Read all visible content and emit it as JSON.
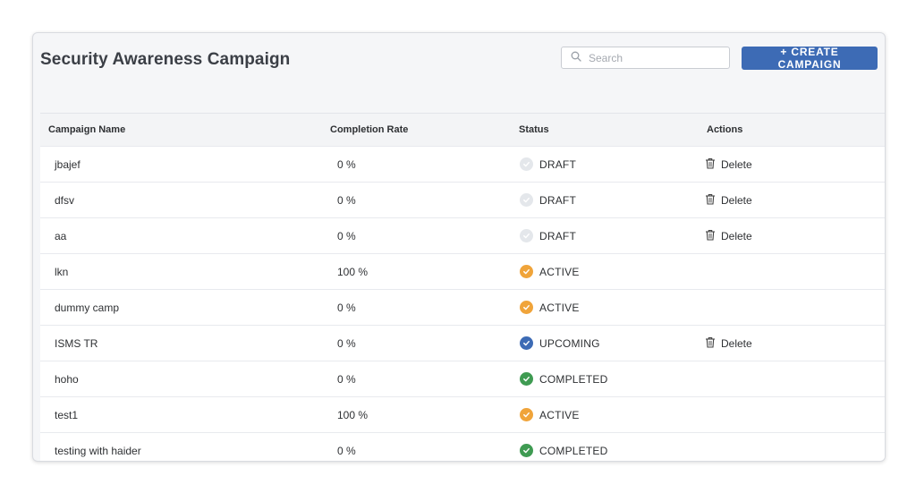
{
  "page": {
    "title": "Security Awareness Campaign",
    "search_placeholder": "Search",
    "search_value": "",
    "create_button": "+ CREATE CAMPAIGN"
  },
  "colors": {
    "accent": "#3d6bb5",
    "draft": "#e4e7eb",
    "active": "#f0a43a",
    "upcoming": "#3d6bb5",
    "completed": "#3f9b52"
  },
  "table": {
    "columns": [
      "Campaign Name",
      "Completion Rate",
      "Status",
      "Actions"
    ],
    "rows": [
      {
        "name": "jbajef",
        "rate": "0 %",
        "status": "DRAFT",
        "status_icon": "check-circle-icon",
        "action": "Delete"
      },
      {
        "name": "dfsv",
        "rate": "0 %",
        "status": "DRAFT",
        "status_icon": "check-circle-icon",
        "action": "Delete"
      },
      {
        "name": "aa",
        "rate": "0 %",
        "status": "DRAFT",
        "status_icon": "check-circle-icon",
        "action": "Delete"
      },
      {
        "name": "lkn",
        "rate": "100 %",
        "status": "ACTIVE",
        "status_icon": "check-circle-icon",
        "action": ""
      },
      {
        "name": "dummy camp",
        "rate": "0 %",
        "status": "ACTIVE",
        "status_icon": "check-circle-icon",
        "action": ""
      },
      {
        "name": "ISMS TR",
        "rate": "0 %",
        "status": "UPCOMING",
        "status_icon": "check-circle-icon",
        "action": "Delete"
      },
      {
        "name": "hoho",
        "rate": "0 %",
        "status": "COMPLETED",
        "status_icon": "check-circle-icon",
        "action": ""
      },
      {
        "name": "test1",
        "rate": "100 %",
        "status": "ACTIVE",
        "status_icon": "check-circle-icon",
        "action": ""
      },
      {
        "name": "testing with haider",
        "rate": "0 %",
        "status": "COMPLETED",
        "status_icon": "check-circle-icon",
        "action": ""
      }
    ]
  }
}
